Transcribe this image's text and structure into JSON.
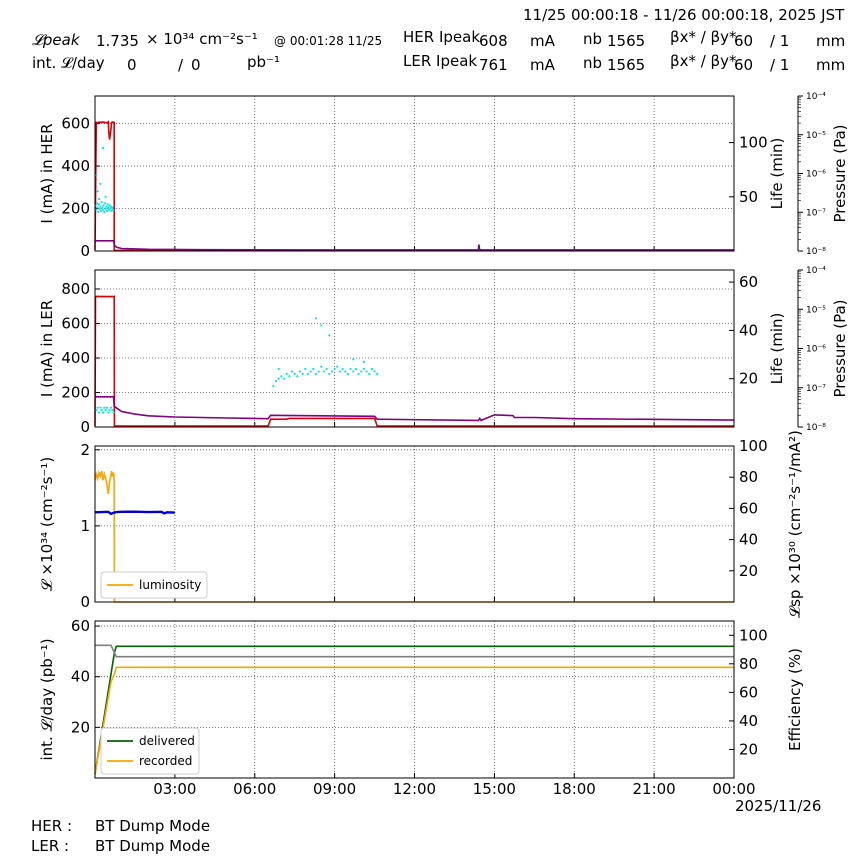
{
  "header": {
    "time_range": "11/25 00:00:18 - 11/26 00:00:18, 2025 JST",
    "lpeak_label": "𝓛peak",
    "lpeak_value": "1.735",
    "lpeak_unit": "× 10³⁴ cm⁻²s⁻¹",
    "lpeak_time": "@ 00:01:28 11/25",
    "intl_label": "int. 𝓛/day",
    "intl_delivered": "0",
    "intl_sep": "/",
    "intl_recorded": "0",
    "intl_unit": "pb⁻¹",
    "her_label": "HER Ipeak",
    "her_current": "608",
    "her_unit": "mA",
    "her_nb_label": "nb",
    "her_nb": "1565",
    "her_beta_label": "βx* / βy*",
    "her_betax": "60",
    "her_betay": "/ 1",
    "her_beta_unit": "mm",
    "ler_label": "LER Ipeak",
    "ler_current": "761",
    "ler_unit": "mA",
    "ler_nb_label": "nb",
    "ler_nb": "1565",
    "ler_beta_label": "βx* / βy*",
    "ler_betax": "60",
    "ler_betay": "/ 1",
    "ler_beta_unit": "mm"
  },
  "footer": {
    "date_label": "2025/11/26",
    "her_mode_label": "HER :",
    "her_mode": "BT Dump Mode",
    "ler_mode_label": "LER :",
    "ler_mode": "BT Dump Mode"
  },
  "colors": {
    "current": "#dd0000",
    "lifetime": "#00e5ee",
    "pressure": "#800080",
    "luminosity": "#ffa500",
    "specific": "#0000cc",
    "delivered": "#006400",
    "recorded": "#ffa500",
    "efficiency": "#808080",
    "grid": "#555555"
  },
  "chart_data": [
    {
      "type": "line",
      "title": "",
      "ylabel": "I (mA) in HER",
      "y2label": "Life (min)",
      "y3label": "Pressure (Pa)",
      "xlim": [
        0,
        24
      ],
      "ylim": [
        0,
        730
      ],
      "yticks": [
        0,
        200,
        400,
        600
      ],
      "y2lim": [
        0,
        143
      ],
      "y2ticks": [
        50,
        100
      ],
      "y3log": [
        -8,
        -4
      ],
      "y3ticks": [
        "10⁻⁸",
        "10⁻⁷",
        "10⁻⁶",
        "10⁻⁵",
        "10⁻⁴"
      ],
      "grid": true,
      "series": [
        {
          "role": "current",
          "axis": "left",
          "x": [
            0,
            0.05,
            0.3,
            0.45,
            0.5,
            0.52,
            0.55,
            0.6,
            0.62,
            0.7,
            0.72,
            0.68,
            0.65,
            0.7,
            0.72,
            0.72,
            0.73,
            24
          ],
          "y": [
            5,
            605,
            607,
            604,
            608,
            560,
            525,
            575,
            605,
            606,
            604,
            608,
            606,
            606,
            605,
            5,
            3,
            3
          ]
        },
        {
          "role": "lifetime",
          "axis": "right",
          "style": "dots",
          "x": [
            0.02,
            0.05,
            0.08,
            0.1,
            0.12,
            0.15,
            0.18,
            0.2,
            0.22,
            0.25,
            0.28,
            0.3,
            0.32,
            0.35,
            0.38,
            0.4,
            0.42,
            0.45,
            0.48,
            0.5,
            0.52,
            0.55,
            0.58,
            0.6,
            0.62,
            0.65,
            0.68,
            0.1,
            0.2,
            0.05,
            0.3,
            0.15,
            0.4
          ],
          "y": [
            42,
            38,
            44,
            40,
            36,
            43,
            39,
            41,
            37,
            45,
            40,
            38,
            42,
            36,
            44,
            39,
            41,
            37,
            43,
            40,
            38,
            42,
            39,
            41,
            37,
            40,
            38,
            55,
            62,
            70,
            95,
            48,
            50
          ]
        },
        {
          "role": "pressure",
          "axis": "left",
          "x": [
            0,
            0.7,
            0.72,
            0.8,
            1.0,
            2.0,
            4.0,
            8.0,
            12.0,
            14.4,
            14.42,
            14.45,
            14.5,
            20.0,
            24.0
          ],
          "y": [
            48,
            48,
            30,
            18,
            12,
            8,
            6,
            5,
            5,
            5,
            30,
            5,
            5,
            5,
            5
          ]
        }
      ]
    },
    {
      "type": "line",
      "title": "",
      "ylabel": "I (mA) in LER",
      "y2label": "Life (min)",
      "y3label": "Pressure (Pa)",
      "xlim": [
        0,
        24
      ],
      "ylim": [
        0,
        910
      ],
      "yticks": [
        0,
        200,
        400,
        600,
        800
      ],
      "y2lim": [
        0,
        65
      ],
      "y2ticks": [
        20,
        40,
        60
      ],
      "y3log": [
        -8,
        -4
      ],
      "y3ticks": [
        "10⁻⁸",
        "10⁻⁷",
        "10⁻⁶",
        "10⁻⁵",
        "10⁻⁴"
      ],
      "grid": true,
      "series": [
        {
          "role": "current",
          "axis": "left",
          "x": [
            0,
            0.02,
            0.7,
            0.72,
            0.73,
            6.5,
            6.6,
            7.2,
            7.3,
            10.5,
            10.6,
            24
          ],
          "y": [
            5,
            757,
            756,
            757,
            5,
            5,
            45,
            45,
            50,
            50,
            5,
            5
          ]
        },
        {
          "role": "lifetime",
          "axis": "right",
          "style": "dots",
          "x": [
            0.05,
            0.1,
            0.15,
            0.2,
            0.25,
            0.3,
            0.35,
            0.4,
            0.45,
            0.5,
            0.55,
            0.6,
            0.65,
            0.7,
            6.7,
            6.8,
            6.9,
            7.0,
            7.1,
            7.2,
            7.3,
            7.4,
            7.5,
            7.6,
            7.7,
            7.8,
            7.9,
            8.0,
            8.1,
            8.2,
            8.3,
            8.4,
            8.5,
            8.6,
            8.7,
            8.8,
            8.9,
            9.0,
            9.1,
            9.2,
            9.3,
            9.4,
            9.5,
            9.6,
            9.7,
            9.8,
            9.9,
            10.0,
            10.1,
            10.2,
            10.3,
            10.4,
            10.5,
            10.6,
            6.9,
            8.3,
            8.5,
            8.8,
            9.7,
            10.1
          ],
          "y": [
            7,
            8,
            6,
            8,
            7,
            6,
            8,
            7,
            8,
            6,
            7,
            8,
            7,
            6,
            17,
            19,
            20,
            21,
            20,
            22,
            21,
            23,
            22,
            21,
            23,
            22,
            24,
            22,
            23,
            24,
            22,
            23,
            25,
            23,
            24,
            22,
            23,
            24,
            25,
            23,
            24,
            23,
            22,
            24,
            23,
            24,
            22,
            23,
            24,
            23,
            22,
            24,
            23,
            22,
            24,
            45,
            42,
            38,
            28,
            27
          ]
        },
        {
          "role": "pressure",
          "axis": "left",
          "x": [
            0,
            0.7,
            0.72,
            1.0,
            1.5,
            2.0,
            3.0,
            5.0,
            6.5,
            6.6,
            7.5,
            10.5,
            10.6,
            14.4,
            14.45,
            14.5,
            15.0,
            15.05,
            15.7,
            15.75,
            16.5,
            18.0,
            24.0
          ],
          "y": [
            175,
            175,
            120,
            90,
            75,
            65,
            58,
            52,
            48,
            68,
            66,
            62,
            45,
            38,
            50,
            38,
            70,
            70,
            66,
            55,
            55,
            48,
            40
          ]
        }
      ]
    },
    {
      "type": "line",
      "title": "",
      "ylabel": "𝓛 ×10³⁴ (cm⁻²s⁻¹)",
      "y2label": "𝓛sp ×10³⁰ (cm⁻²s⁻¹/mA²)",
      "xlim": [
        0,
        24
      ],
      "ylim": [
        0,
        2.05
      ],
      "yticks": [
        0,
        1,
        2
      ],
      "y2lim": [
        0,
        100
      ],
      "y2ticks": [
        20,
        40,
        60,
        80,
        100
      ],
      "grid": true,
      "legend": {
        "position": "lower-left",
        "entries": [
          "luminosity"
        ]
      },
      "series": [
        {
          "name": "luminosity",
          "role": "luminosity",
          "axis": "left",
          "x": [
            0,
            0.05,
            0.1,
            0.15,
            0.2,
            0.25,
            0.3,
            0.35,
            0.4,
            0.45,
            0.5,
            0.55,
            0.6,
            0.62,
            0.65,
            0.7,
            0.72,
            0.73,
            24
          ],
          "y": [
            1.6,
            1.68,
            1.62,
            1.7,
            1.65,
            1.72,
            1.6,
            1.68,
            1.62,
            1.55,
            1.42,
            1.58,
            1.67,
            1.72,
            1.65,
            1.7,
            1.6,
            0,
            0
          ]
        },
        {
          "role": "specific",
          "axis": "right",
          "x": [
            0,
            0.5,
            0.6,
            0.7,
            0.8,
            1.0,
            1.5,
            2.0,
            2.5,
            2.6,
            2.7,
            3.0
          ],
          "y": [
            57.5,
            57.8,
            56.5,
            57.2,
            57.6,
            57.8,
            57.9,
            57.6,
            57.8,
            56.8,
            57.5,
            57.3
          ]
        }
      ]
    },
    {
      "type": "line",
      "title": "",
      "ylabel": "int. 𝓛/day (pb⁻¹)",
      "y2label": "Efficiency (%)",
      "xlim": [
        0,
        24
      ],
      "ylim": [
        0,
        62
      ],
      "yticks": [
        20,
        40,
        60
      ],
      "y2lim": [
        0,
        110
      ],
      "y2ticks": [
        20,
        40,
        60,
        80,
        100
      ],
      "xticks": [
        "03:00",
        "06:00",
        "09:00",
        "12:00",
        "15:00",
        "18:00",
        "21:00",
        "00:00"
      ],
      "grid": true,
      "legend": {
        "position": "lower-left",
        "entries": [
          "delivered",
          "recorded"
        ]
      },
      "series": [
        {
          "name": "delivered",
          "role": "delivered",
          "axis": "left",
          "x": [
            0,
            0.73,
            0.8,
            24
          ],
          "y": [
            1.5,
            49.5,
            52.0,
            52.0
          ]
        },
        {
          "name": "recorded",
          "role": "recorded",
          "axis": "left",
          "x": [
            0,
            0.6,
            0.73,
            0.8,
            24
          ],
          "y": [
            1.5,
            38,
            41,
            43.7,
            43.7
          ]
        },
        {
          "role": "efficiency",
          "axis": "right",
          "x": [
            0,
            0.6,
            0.8,
            1.0,
            24
          ],
          "y": [
            93,
            93,
            85,
            85,
            85
          ]
        }
      ]
    }
  ]
}
